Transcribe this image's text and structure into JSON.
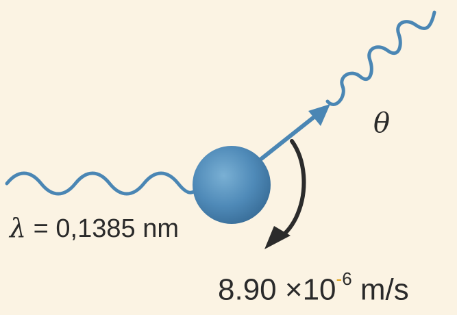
{
  "labels": {
    "wavelength_symbol": "λ",
    "wavelength_equals": "=",
    "wavelength_value": "0,1385",
    "wavelength_unit": "nm",
    "angle_symbol": "θ",
    "velocity_mantissa": "8.90",
    "velocity_times": "×10",
    "velocity_exp_sign": "-",
    "velocity_exp": "6",
    "velocity_unit": "m/s"
  },
  "colors": {
    "background": "#fbf3e3",
    "wave": "#4a86b4",
    "particle": "#4f8ab8",
    "arrow": "#2b2b2b",
    "text": "#2a2a2a",
    "exponent_dash": "#e0a21a"
  },
  "icons": {
    "incident_wave": "wavy-line",
    "scattered_wave": "wavy-line",
    "particle": "sphere",
    "recoil_arrow": "arrow",
    "angle_arc": "curved-arrow"
  }
}
